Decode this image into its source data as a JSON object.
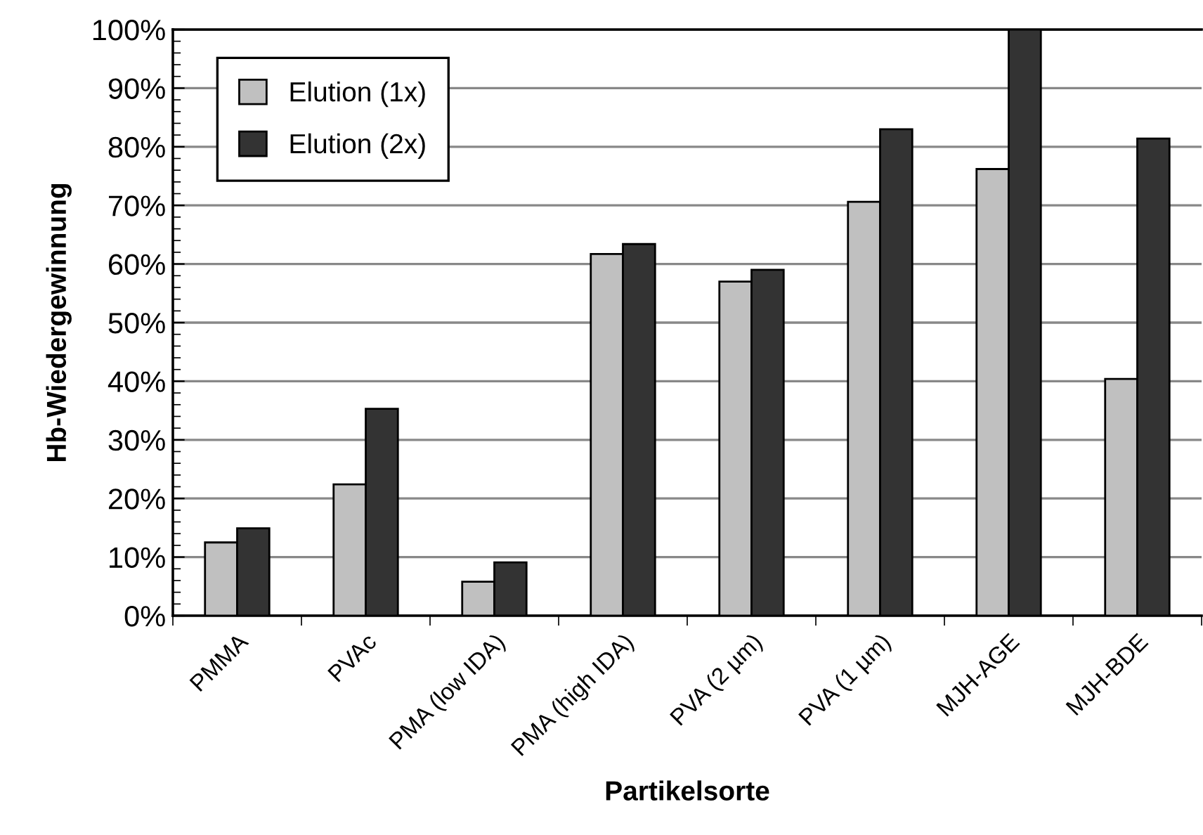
{
  "chart_data": {
    "type": "bar",
    "xlabel": "Partikelsorte",
    "ylabel": "Hb-Wiedergewinnung",
    "categories": [
      "PMMA",
      "PVAc",
      "PMA (low IDA)",
      "PMA (high IDA)",
      "PVA (2 µm)",
      "PVA (1 µm)",
      "MJH-AGE",
      "MJH-BDE"
    ],
    "series": [
      {
        "name": "Elution (1x)",
        "color": "#c0c0c0",
        "values": [
          12.5,
          22.4,
          5.8,
          61.7,
          57.0,
          70.6,
          76.2,
          40.4
        ]
      },
      {
        "name": "Elution (2x)",
        "color": "#333333",
        "values": [
          14.9,
          35.3,
          9.1,
          63.4,
          59.0,
          83.0,
          100,
          81.4
        ]
      }
    ],
    "ylim": [
      0,
      100
    ],
    "yticks": [
      {
        "value": 0,
        "label": "0%"
      },
      {
        "value": 10,
        "label": "10%"
      },
      {
        "value": 20,
        "label": "20%"
      },
      {
        "value": 30,
        "label": "30%"
      },
      {
        "value": 40,
        "label": "40%"
      },
      {
        "value": 50,
        "label": "50%"
      },
      {
        "value": 60,
        "label": "60%"
      },
      {
        "value": 70,
        "label": "70%"
      },
      {
        "value": 80,
        "label": "80%"
      },
      {
        "value": 90,
        "label": "90%"
      },
      {
        "value": 100,
        "label": "100%"
      }
    ],
    "grid": "y",
    "legend": "top left"
  }
}
